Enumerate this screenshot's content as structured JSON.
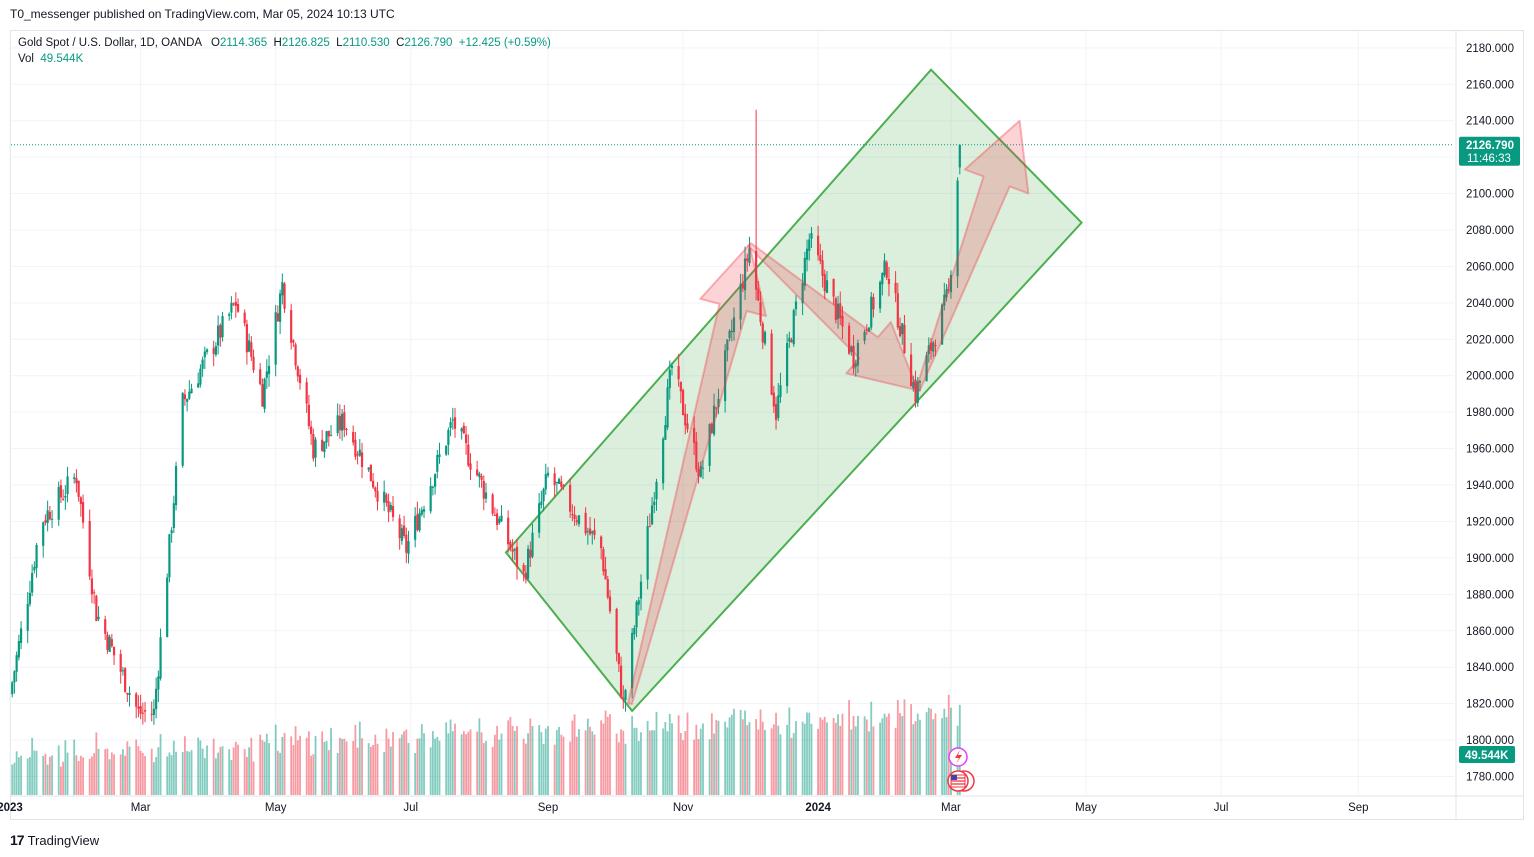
{
  "header": {
    "published": "T0_messenger published on TradingView.com, Mar 05, 2024 10:13 UTC"
  },
  "legend": {
    "symbol": "Gold Spot / U.S. Dollar, 1D, OANDA",
    "o_label": "O",
    "o_value": "2114.365",
    "h_label": "H",
    "h_value": "2126.825",
    "l_label": "L",
    "l_value": "2110.530",
    "c_label": "C",
    "c_value": "2126.790",
    "change": "+12.425 (+0.59%)",
    "vol_label": "Vol",
    "vol_value": "49.544K"
  },
  "price_badge": {
    "price": "2126.790",
    "countdown": "11:46:33"
  },
  "vol_badge": "49.544K",
  "footer": {
    "brand": "TradingView",
    "logo": "17"
  },
  "colors": {
    "up": "#089981",
    "down": "#f23645",
    "channel_fill": "#4caf50",
    "channel_stroke": "#4caf50",
    "arrow": "#f23645"
  },
  "icons": [
    "lightning-icon",
    "flag-icon"
  ],
  "chart_data": {
    "type": "candlestick",
    "symbol": "Gold Spot / U.S. Dollar",
    "interval": "1D",
    "y_axis": {
      "ticks": [
        "1780.000",
        "1800.000",
        "1820.000",
        "1840.000",
        "1860.000",
        "1880.000",
        "1900.000",
        "1920.000",
        "1940.000",
        "1960.000",
        "1980.000",
        "2000.000",
        "2020.000",
        "2040.000",
        "2060.000",
        "2080.000",
        "2100.000",
        "2120.000",
        "2140.000",
        "2160.000",
        "2180.000"
      ],
      "range": [
        1772,
        2186
      ]
    },
    "x_axis": {
      "ticks": [
        "2023",
        "Mar",
        "May",
        "Jul",
        "Sep",
        "Nov",
        "2024",
        "Mar",
        "May",
        "Jul",
        "Sep"
      ],
      "tick_dates": [
        "2023-01-01",
        "2023-03-01",
        "2023-05-01",
        "2023-07-01",
        "2023-09-01",
        "2023-11-01",
        "2024-01-01",
        "2024-03-01",
        "2024-05-01",
        "2024-07-01",
        "2024-09-01"
      ]
    },
    "anchors": [
      {
        "date": "2023-01-01",
        "price": 1825
      },
      {
        "date": "2023-01-15",
        "price": 1920
      },
      {
        "date": "2023-01-31",
        "price": 1945
      },
      {
        "date": "2023-02-09",
        "price": 1870
      },
      {
        "date": "2023-02-28",
        "price": 1815
      },
      {
        "date": "2023-03-07",
        "price": 1815
      },
      {
        "date": "2023-03-20",
        "price": 1985
      },
      {
        "date": "2023-04-13",
        "price": 2040
      },
      {
        "date": "2023-04-25",
        "price": 1990
      },
      {
        "date": "2023-05-04",
        "price": 2050
      },
      {
        "date": "2023-05-18",
        "price": 1960
      },
      {
        "date": "2023-06-01",
        "price": 1975
      },
      {
        "date": "2023-06-29",
        "price": 1905
      },
      {
        "date": "2023-07-20",
        "price": 1975
      },
      {
        "date": "2023-08-21",
        "price": 1890
      },
      {
        "date": "2023-09-01",
        "price": 1945
      },
      {
        "date": "2023-09-25",
        "price": 1905
      },
      {
        "date": "2023-10-05",
        "price": 1820
      },
      {
        "date": "2023-10-27",
        "price": 2005
      },
      {
        "date": "2023-11-09",
        "price": 1945
      },
      {
        "date": "2023-12-01",
        "price": 2070
      },
      {
        "date": "2023-12-13",
        "price": 1980
      },
      {
        "date": "2023-12-28",
        "price": 2075
      },
      {
        "date": "2024-01-17",
        "price": 2010
      },
      {
        "date": "2024-02-01",
        "price": 2060
      },
      {
        "date": "2024-02-14",
        "price": 1990
      },
      {
        "date": "2024-02-29",
        "price": 2045
      },
      {
        "date": "2024-03-05",
        "price": 2126.79
      }
    ],
    "last_bar": {
      "open": 2114.365,
      "high": 2126.825,
      "low": 2110.53,
      "close": 2126.79,
      "change": 12.425,
      "change_pct": 0.59,
      "volume": "49.544K"
    },
    "drawings": {
      "channel": {
        "corners": [
          {
            "date": "2023-08-13",
            "price": 1903
          },
          {
            "date": "2024-02-21",
            "price": 2168
          },
          {
            "date": "2024-04-29",
            "price": 2084
          },
          {
            "date": "2023-10-09",
            "price": 1816
          }
        ]
      },
      "arrows": [
        {
          "from": {
            "date": "2023-10-08",
            "price": 1820
          },
          "to": {
            "date": "2023-12-01",
            "price": 2072
          }
        },
        {
          "from": {
            "date": "2023-12-01",
            "price": 2072
          },
          "to": {
            "date": "2024-02-15",
            "price": 1992
          }
        },
        {
          "from": {
            "date": "2024-02-15",
            "price": 1992
          },
          "to": {
            "date": "2024-04-01",
            "price": 2140
          }
        }
      ]
    }
  }
}
